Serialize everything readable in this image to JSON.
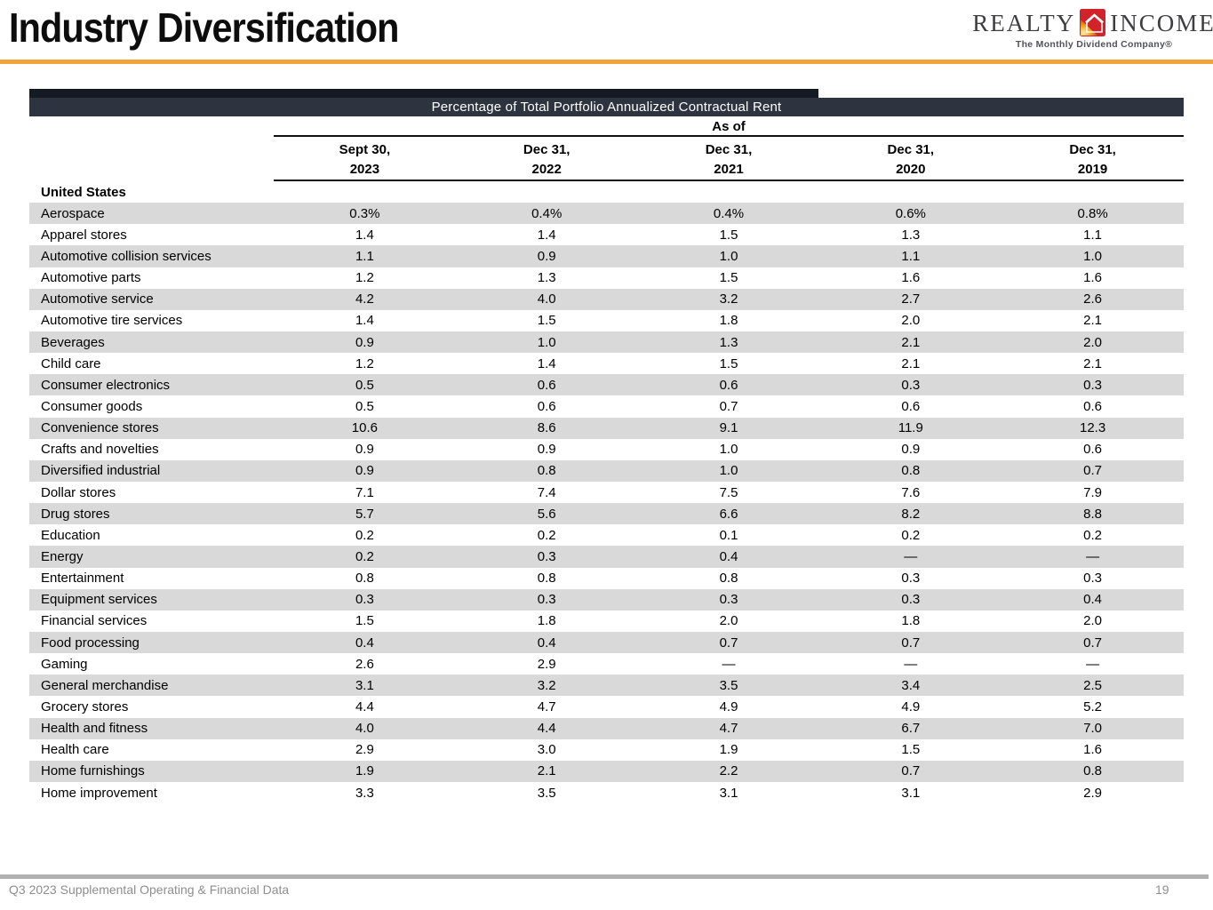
{
  "header": {
    "title": "Industry Diversification",
    "logo": {
      "realty": "REALTY",
      "income": "INCOME",
      "tagline": "The Monthly Dividend Company®",
      "brand_red": "#D2232A",
      "brand_orange": "#F6A01A"
    },
    "accent_color": "#F2A43B"
  },
  "table": {
    "banner": "Percentage of Total Portfolio Annualized Contractual Rent",
    "banner_bg": "#2D3440",
    "as_of_label": "As of",
    "row_shade_color": "#D9D9D9",
    "columns": [
      {
        "line1": "Sept 30,",
        "line2": "2023"
      },
      {
        "line1": "Dec 31,",
        "line2": "2022"
      },
      {
        "line1": "Dec 31,",
        "line2": "2021"
      },
      {
        "line1": "Dec 31,",
        "line2": "2020"
      },
      {
        "line1": "Dec 31,",
        "line2": "2019"
      }
    ],
    "section_label": "United States",
    "rows": [
      {
        "label": "Aerospace",
        "values": [
          "0.3%",
          "0.4%",
          "0.4%",
          "0.6%",
          "0.8%"
        ]
      },
      {
        "label": "Apparel stores",
        "values": [
          "1.4",
          "1.4",
          "1.5",
          "1.3",
          "1.1"
        ]
      },
      {
        "label": "Automotive collision services",
        "values": [
          "1.1",
          "0.9",
          "1.0",
          "1.1",
          "1.0"
        ]
      },
      {
        "label": "Automotive parts",
        "values": [
          "1.2",
          "1.3",
          "1.5",
          "1.6",
          "1.6"
        ]
      },
      {
        "label": "Automotive service",
        "values": [
          "4.2",
          "4.0",
          "3.2",
          "2.7",
          "2.6"
        ]
      },
      {
        "label": "Automotive tire services",
        "values": [
          "1.4",
          "1.5",
          "1.8",
          "2.0",
          "2.1"
        ]
      },
      {
        "label": "Beverages",
        "values": [
          "0.9",
          "1.0",
          "1.3",
          "2.1",
          "2.0"
        ]
      },
      {
        "label": "Child care",
        "values": [
          "1.2",
          "1.4",
          "1.5",
          "2.1",
          "2.1"
        ]
      },
      {
        "label": "Consumer electronics",
        "values": [
          "0.5",
          "0.6",
          "0.6",
          "0.3",
          "0.3"
        ]
      },
      {
        "label": "Consumer goods",
        "values": [
          "0.5",
          "0.6",
          "0.7",
          "0.6",
          "0.6"
        ]
      },
      {
        "label": "Convenience stores",
        "values": [
          "10.6",
          "8.6",
          "9.1",
          "11.9",
          "12.3"
        ]
      },
      {
        "label": "Crafts and novelties",
        "values": [
          "0.9",
          "0.9",
          "1.0",
          "0.9",
          "0.6"
        ]
      },
      {
        "label": "Diversified industrial",
        "values": [
          "0.9",
          "0.8",
          "1.0",
          "0.8",
          "0.7"
        ]
      },
      {
        "label": "Dollar stores",
        "values": [
          "7.1",
          "7.4",
          "7.5",
          "7.6",
          "7.9"
        ]
      },
      {
        "label": "Drug stores",
        "values": [
          "5.7",
          "5.6",
          "6.6",
          "8.2",
          "8.8"
        ]
      },
      {
        "label": "Education",
        "values": [
          "0.2",
          "0.2",
          "0.1",
          "0.2",
          "0.2"
        ]
      },
      {
        "label": "Energy",
        "values": [
          "0.2",
          "0.3",
          "0.4",
          "—",
          "—"
        ]
      },
      {
        "label": "Entertainment",
        "values": [
          "0.8",
          "0.8",
          "0.8",
          "0.3",
          "0.3"
        ]
      },
      {
        "label": "Equipment services",
        "values": [
          "0.3",
          "0.3",
          "0.3",
          "0.3",
          "0.4"
        ]
      },
      {
        "label": "Financial services",
        "values": [
          "1.5",
          "1.8",
          "2.0",
          "1.8",
          "2.0"
        ]
      },
      {
        "label": "Food processing",
        "values": [
          "0.4",
          "0.4",
          "0.7",
          "0.7",
          "0.7"
        ]
      },
      {
        "label": "Gaming",
        "values": [
          "2.6",
          "2.9",
          "—",
          "—",
          "—"
        ]
      },
      {
        "label": "General merchandise",
        "values": [
          "3.1",
          "3.2",
          "3.5",
          "3.4",
          "2.5"
        ]
      },
      {
        "label": "Grocery stores",
        "values": [
          "4.4",
          "4.7",
          "4.9",
          "4.9",
          "5.2"
        ]
      },
      {
        "label": "Health and fitness",
        "values": [
          "4.0",
          "4.4",
          "4.7",
          "6.7",
          "7.0"
        ]
      },
      {
        "label": "Health care",
        "values": [
          "2.9",
          "3.0",
          "1.9",
          "1.5",
          "1.6"
        ]
      },
      {
        "label": "Home furnishings",
        "values": [
          "1.9",
          "2.1",
          "2.2",
          "0.7",
          "0.8"
        ]
      },
      {
        "label": "Home improvement",
        "values": [
          "3.3",
          "3.5",
          "3.1",
          "3.1",
          "2.9"
        ]
      }
    ]
  },
  "footer": {
    "left": "Q3 2023 Supplemental Operating & Financial Data",
    "page": "19"
  }
}
